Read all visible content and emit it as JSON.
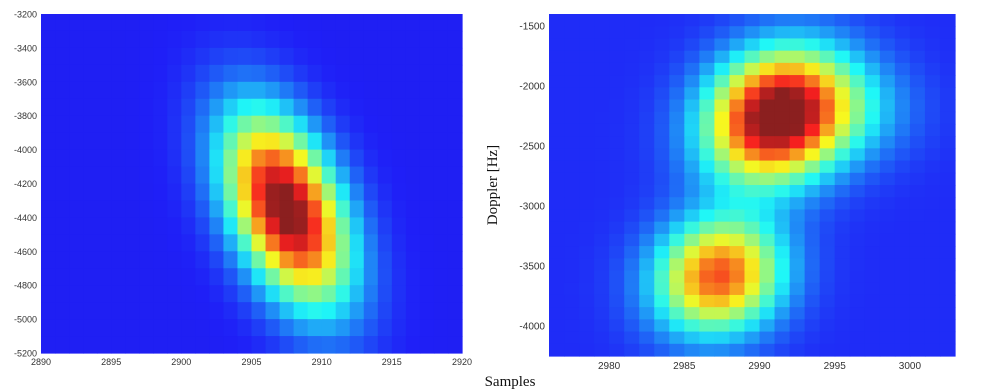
{
  "figure": {
    "shared_xlabel": "Samples"
  },
  "chart_data": [
    {
      "type": "heatmap",
      "title": "",
      "xlabel": "",
      "ylabel": "",
      "xlim": [
        2890,
        2920
      ],
      "ylim": [
        -5200,
        -3200
      ],
      "xticks": [
        2890,
        2895,
        2900,
        2905,
        2910,
        2915,
        2920
      ],
      "yticks": [
        -3200,
        -3400,
        -3600,
        -3800,
        -4000,
        -4200,
        -4400,
        -4600,
        -4800,
        -5000,
        -5200
      ],
      "colormap": "jet",
      "background_level": 0.12,
      "peaks": [
        {
          "x": 2907.5,
          "y": -4350,
          "sx": 3.0,
          "sy": 380,
          "rho": -0.45,
          "amplitude": 0.92
        }
      ]
    },
    {
      "type": "heatmap",
      "title": "",
      "xlabel": "",
      "ylabel": "Doppler [Hz]",
      "xlim": [
        2976,
        3003
      ],
      "ylim": [
        -4250,
        -1400
      ],
      "xticks": [
        2980,
        2985,
        2990,
        2995,
        3000
      ],
      "yticks": [
        -1500,
        -2000,
        -2500,
        -3000,
        -3500,
        -4000
      ],
      "colormap": "jet",
      "background_level": 0.14,
      "peaks": [
        {
          "x": 2991.2,
          "y": -2250,
          "sx": 3.2,
          "sy": 370,
          "rho": 0.15,
          "amplitude": 0.95
        },
        {
          "x": 2987.3,
          "y": -3580,
          "sx": 2.9,
          "sy": 330,
          "rho": 0.1,
          "amplitude": 0.68
        },
        {
          "x": 2996.5,
          "y": -2200,
          "sx": 3.0,
          "sy": 300,
          "rho": 0.0,
          "amplitude": 0.12
        }
      ]
    }
  ]
}
